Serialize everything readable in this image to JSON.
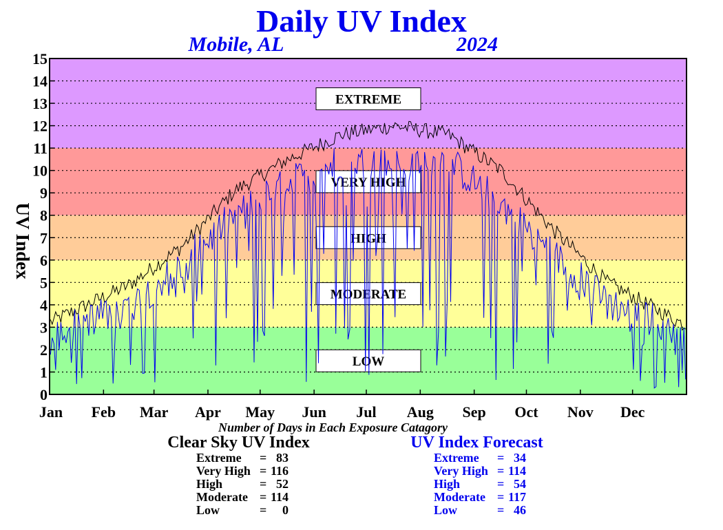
{
  "chart_data": {
    "type": "line",
    "title": "Daily UV Index",
    "location": "Mobile, AL",
    "year": "2024",
    "ylabel": "UV Index",
    "ylim": [
      0,
      15
    ],
    "yticks": [
      0,
      1,
      2,
      3,
      4,
      5,
      6,
      7,
      8,
      9,
      10,
      11,
      12,
      13,
      14,
      15
    ],
    "x_tick_labels": [
      "Jan",
      "Feb",
      "Mar",
      "Apr",
      "May",
      "Jun",
      "Jul",
      "Aug",
      "Sep",
      "Oct",
      "Nov",
      "Dec"
    ],
    "grid": "dotted horizontal",
    "categories": [
      {
        "name": "LOW",
        "range": [
          0,
          3
        ],
        "color": "#99ff99"
      },
      {
        "name": "MODERATE",
        "range": [
          3,
          6
        ],
        "color": "#ffff99"
      },
      {
        "name": "HIGH",
        "range": [
          6,
          8
        ],
        "color": "#ffcc99"
      },
      {
        "name": "VERY HIGH",
        "range": [
          8,
          11
        ],
        "color": "#ff9999"
      },
      {
        "name": "EXTREME",
        "range": [
          11,
          15
        ],
        "color": "#dd99ff"
      }
    ],
    "series": [
      {
        "name": "Clear Sky UV Index",
        "color": "#000000",
        "monthly_approx": [
          3.8,
          4.9,
          6.6,
          9.1,
          10.5,
          11.6,
          12.0,
          11.6,
          10.0,
          7.3,
          5.0,
          3.7
        ]
      },
      {
        "name": "UV Index Forecast",
        "color": "#0000ee",
        "monthly_approx": [
          2.9,
          3.6,
          5.5,
          7.7,
          9.1,
          10.1,
          9.9,
          10.1,
          8.2,
          5.9,
          3.8,
          2.9
        ]
      }
    ]
  },
  "stats": {
    "heading": "Number of Days in Each Exposure Catagory",
    "clear_sky": {
      "title": "Clear Sky UV Index",
      "rows": [
        {
          "label": "Extreme",
          "value": "83"
        },
        {
          "label": "Very High",
          "value": "116"
        },
        {
          "label": "High",
          "value": "52"
        },
        {
          "label": "Moderate",
          "value": "114"
        },
        {
          "label": "Low",
          "value": "0"
        }
      ]
    },
    "forecast": {
      "title": "UV Index Forecast",
      "rows": [
        {
          "label": "Extreme",
          "value": "34"
        },
        {
          "label": "Very High",
          "value": "114"
        },
        {
          "label": "High",
          "value": "54"
        },
        {
          "label": "Moderate",
          "value": "117"
        },
        {
          "label": "Low",
          "value": "46"
        }
      ]
    }
  }
}
